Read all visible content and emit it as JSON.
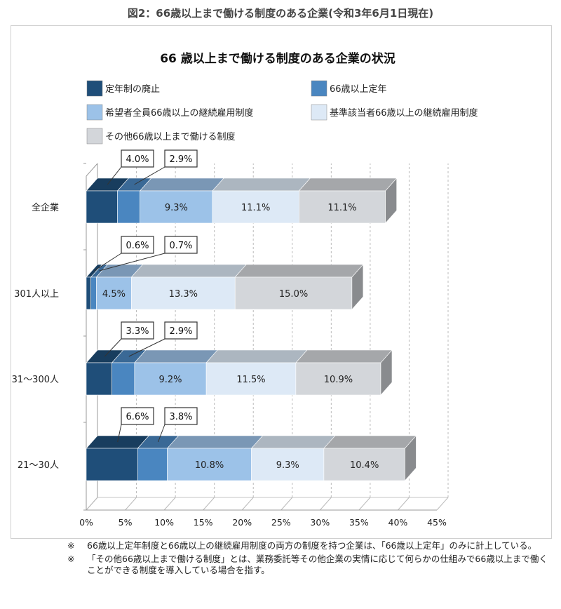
{
  "page_title": "図2：66歳以上まで働ける制度のある企業(令和3年6月1日現在)",
  "notes": [
    {
      "mark": "※",
      "text": "66歳以上定年制度と66歳以上の継続雇用制度の両方の制度を持つ企業は、「66歳以上定年」のみに計上している。"
    },
    {
      "mark": "※",
      "text": "「その他66歳以上まで働ける制度」とは、業務委託等その他企業の実情に応じて何らかの仕組みで66歳以上まで働くことができる制度を導入している場合を指す。"
    }
  ],
  "colors": {
    "abolish": "#1f4e79",
    "teinen66": "#4a86c0",
    "kibo66": "#9cc2e8",
    "kijun66": "#dde9f6",
    "other66": "#d3d6da",
    "frame": "#9a9a9a"
  },
  "chart_data": {
    "type": "bar",
    "orientation": "horizontal",
    "stacked": true,
    "title": "66 歳以上まで働ける制度のある企業の状況",
    "categories": [
      "全企業",
      "301人以上",
      "31～300人",
      "21～30人"
    ],
    "series": [
      {
        "name": "定年制の廃止",
        "values": [
          4.0,
          0.6,
          3.3,
          6.6
        ],
        "color": "#1f4e79"
      },
      {
        "name": "66歳以上定年",
        "values": [
          2.9,
          0.7,
          2.9,
          3.8
        ],
        "color": "#4a86c0"
      },
      {
        "name": "希望者全員66歳以上の継続雇用制度",
        "values": [
          9.3,
          4.5,
          9.2,
          10.8
        ],
        "color": "#9cc2e8"
      },
      {
        "name": "基準該当者66歳以上の継続雇用制度",
        "values": [
          11.1,
          13.3,
          11.5,
          9.3
        ],
        "color": "#dde9f6"
      },
      {
        "name": "その他66歳以上まで働ける制度",
        "values": [
          11.1,
          15.0,
          10.9,
          10.4
        ],
        "color": "#d3d6da"
      }
    ],
    "value_labels": [
      [
        "4.0%",
        "2.9%",
        "9.3%",
        "11.1%",
        "11.1%"
      ],
      [
        "0.6%",
        "0.7%",
        "4.5%",
        "13.3%",
        "15.0%"
      ],
      [
        "3.3%",
        "2.9%",
        "9.2%",
        "11.5%",
        "10.9%"
      ],
      [
        "6.6%",
        "3.8%",
        "10.8%",
        "9.3%",
        "10.4%"
      ]
    ],
    "xlim": [
      0,
      45
    ],
    "xticks": [
      0,
      5,
      10,
      15,
      20,
      25,
      30,
      35,
      40,
      45
    ],
    "xtick_labels": [
      "0%",
      "5%",
      "10%",
      "15%",
      "20%",
      "25%",
      "30%",
      "35%",
      "40%",
      "45%"
    ],
    "xlabel": "",
    "ylabel": "",
    "grid": true,
    "three_d": true,
    "legend_position": "top"
  }
}
